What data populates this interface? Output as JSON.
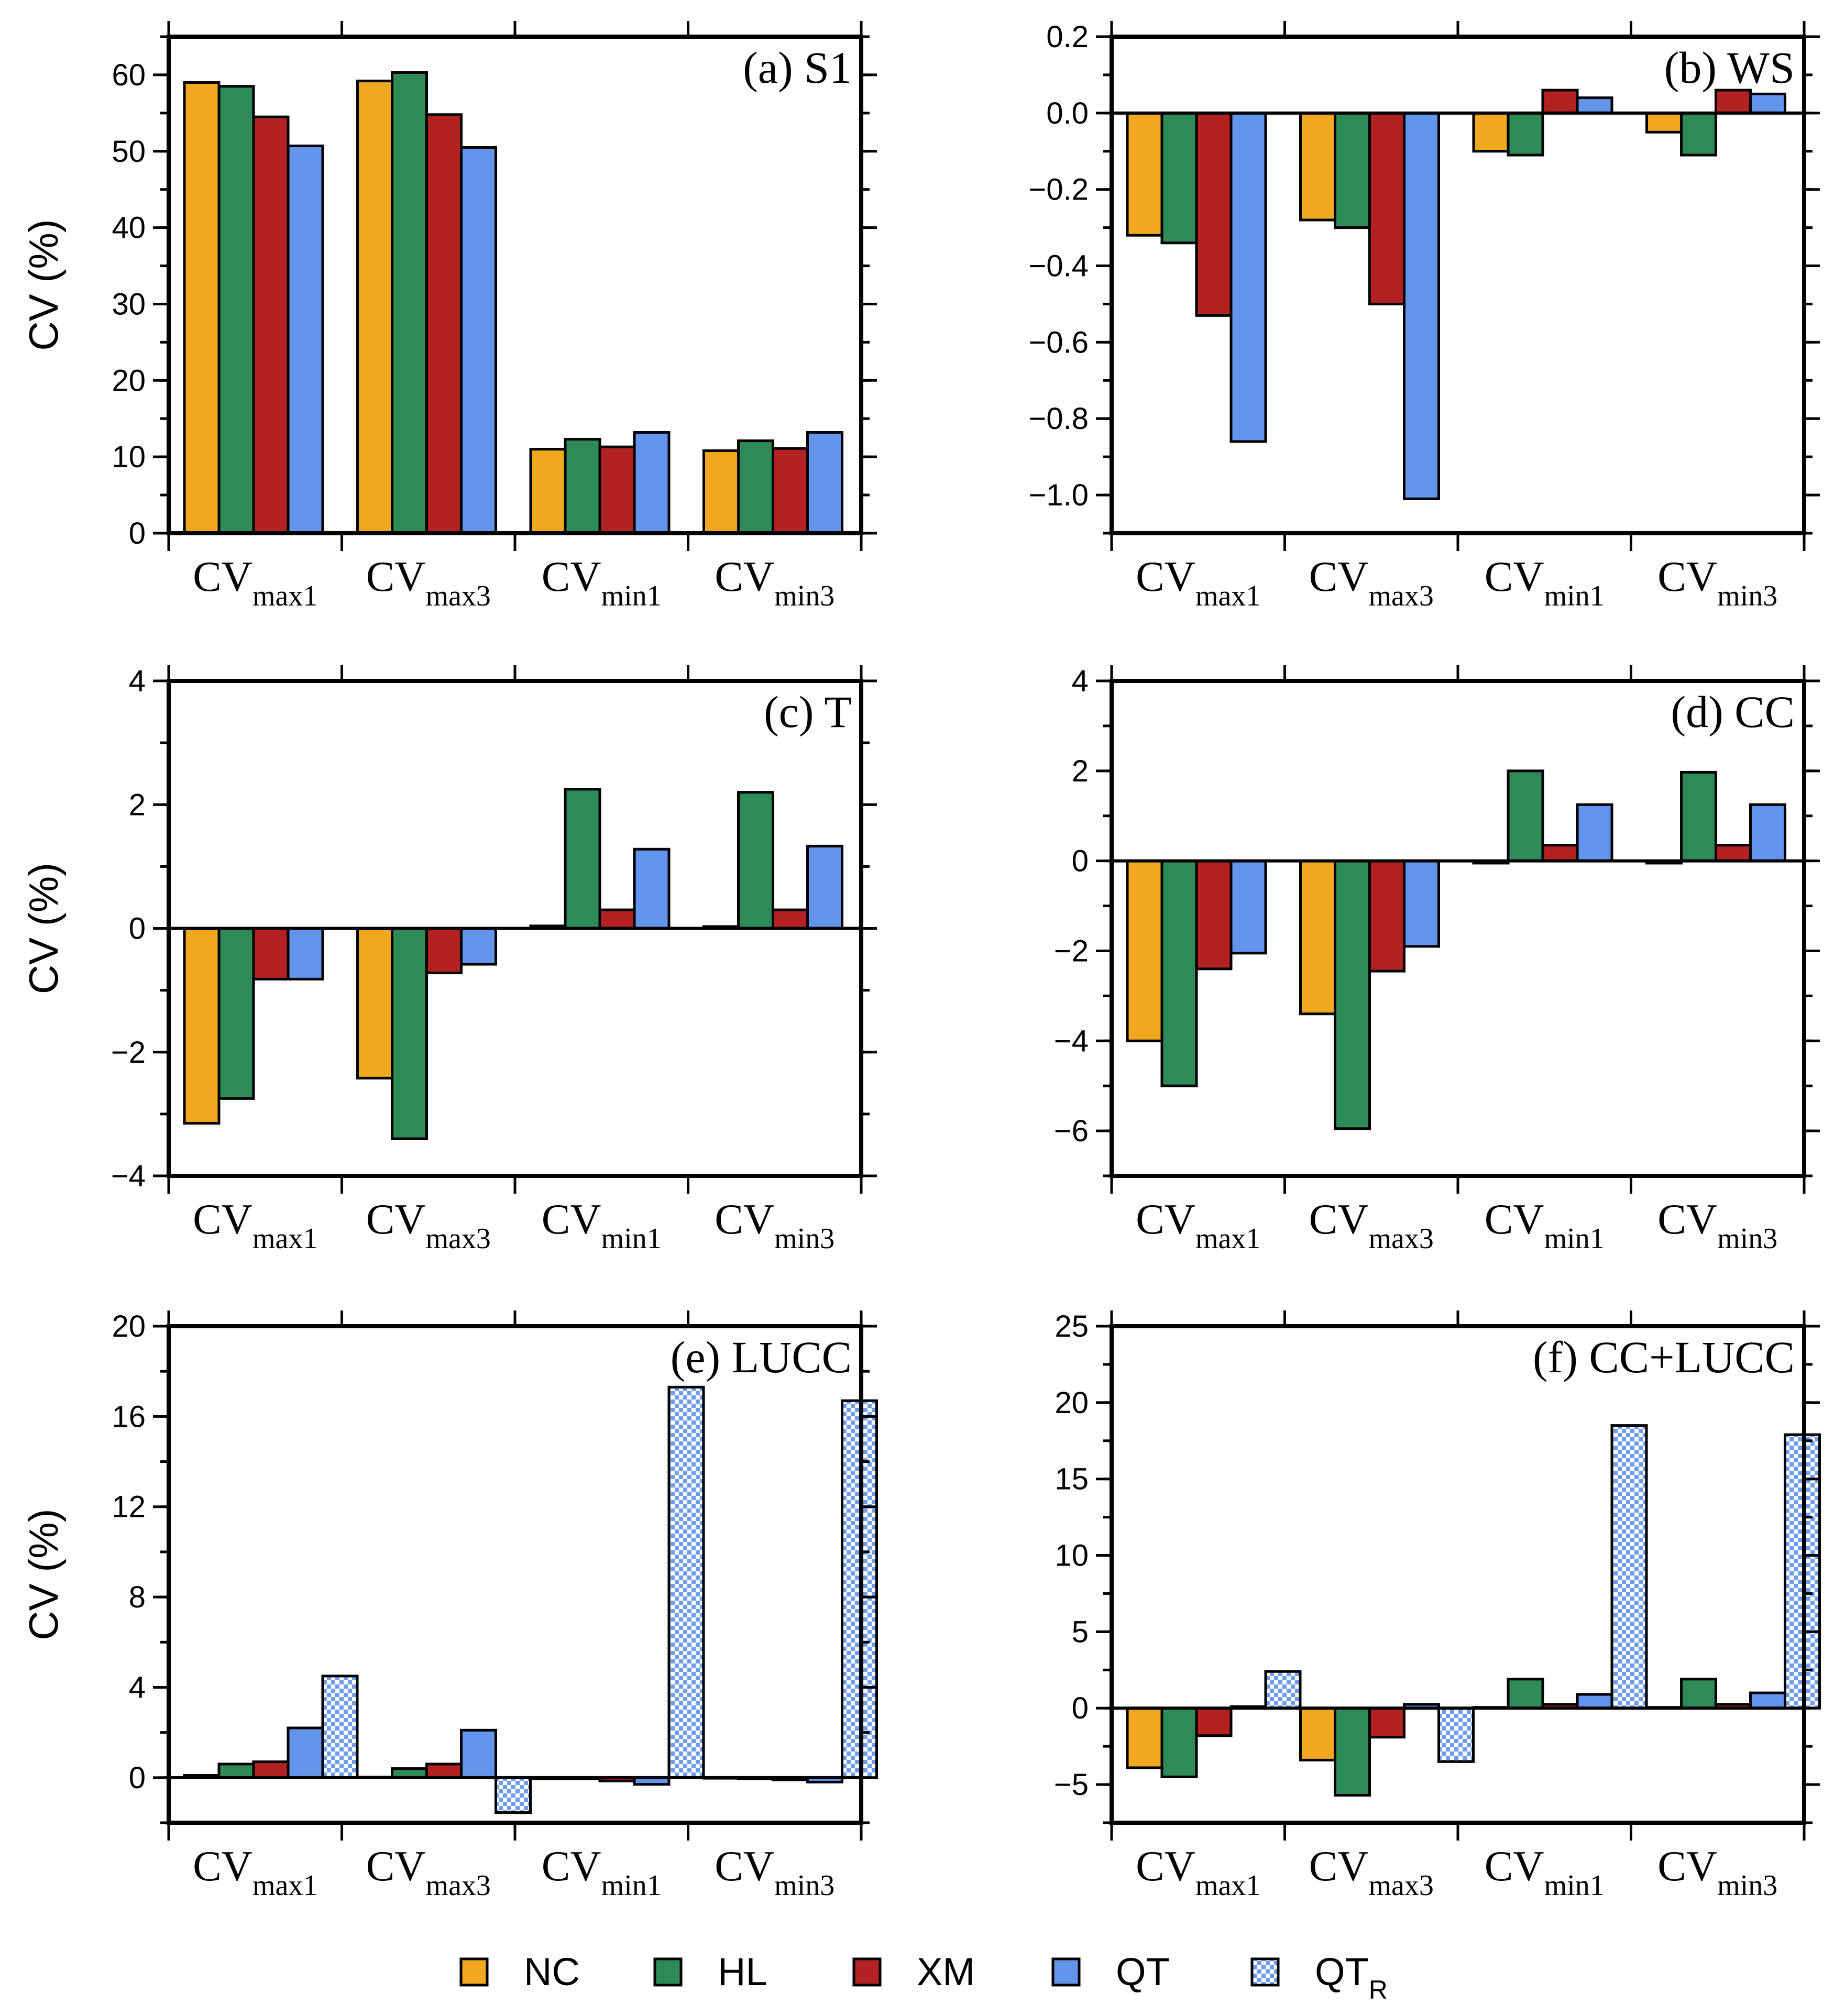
{
  "colors": {
    "NC": "#f0a81e",
    "HL": "#2e8b57",
    "XM": "#b22222",
    "QT": "#6495ed",
    "QT_R_a": "#6d9eeb",
    "QT_R_b": "#ffffff"
  },
  "legend": [
    {
      "key": "NC",
      "label": "NC",
      "sub": ""
    },
    {
      "key": "HL",
      "label": "HL",
      "sub": ""
    },
    {
      "key": "XM",
      "label": "XM",
      "sub": ""
    },
    {
      "key": "QT",
      "label": "QT",
      "sub": ""
    },
    {
      "key": "QT_R",
      "label": "QT",
      "sub": "R"
    }
  ],
  "categories": [
    {
      "main": "CV",
      "sub": "max1"
    },
    {
      "main": "CV",
      "sub": "max3"
    },
    {
      "main": "CV",
      "sub": "min1"
    },
    {
      "main": "CV",
      "sub": "min3"
    }
  ],
  "chart_data": [
    {
      "type": "bar",
      "title": "(a) S1",
      "ylabel": "CV (%)",
      "ylim": [
        0,
        65
      ],
      "yticks": [
        0,
        10,
        20,
        30,
        40,
        50,
        60
      ],
      "ytick_labels": [
        "0",
        "10",
        "20",
        "30",
        "40",
        "50",
        "60"
      ],
      "minor_step": 5,
      "series": [
        {
          "name": "NC",
          "values": [
            59.0,
            59.2,
            11.0,
            10.8
          ]
        },
        {
          "name": "HL",
          "values": [
            58.5,
            60.3,
            12.3,
            12.1
          ]
        },
        {
          "name": "XM",
          "values": [
            54.5,
            54.8,
            11.3,
            11.1
          ]
        },
        {
          "name": "QT",
          "values": [
            50.7,
            50.5,
            13.2,
            13.2
          ]
        }
      ]
    },
    {
      "type": "bar",
      "title": "(b) WS",
      "ylabel": "",
      "ylim": [
        -1.1,
        0.2
      ],
      "yticks": [
        0.2,
        0.0,
        -0.2,
        -0.4,
        -0.6,
        -0.8,
        -1.0
      ],
      "ytick_labels": [
        "0.2",
        "0.0",
        "−0.2",
        "−0.4",
        "−0.6",
        "−0.8",
        "−1.0"
      ],
      "minor_step": 0.1,
      "series": [
        {
          "name": "NC",
          "values": [
            -0.32,
            -0.28,
            -0.1,
            -0.05
          ]
        },
        {
          "name": "HL",
          "values": [
            -0.34,
            -0.3,
            -0.11,
            -0.11
          ]
        },
        {
          "name": "XM",
          "values": [
            -0.53,
            -0.5,
            0.06,
            0.06
          ]
        },
        {
          "name": "QT",
          "values": [
            -0.86,
            -1.01,
            0.04,
            0.05
          ]
        }
      ]
    },
    {
      "type": "bar",
      "title": "(c) T",
      "ylabel": "CV (%)",
      "ylim": [
        -4,
        4
      ],
      "yticks": [
        -4,
        -2,
        0,
        2,
        4
      ],
      "ytick_labels": [
        "−4",
        "−2",
        "0",
        "2",
        "4"
      ],
      "minor_step": 1,
      "series": [
        {
          "name": "NC",
          "values": [
            -3.15,
            -2.42,
            0.04,
            0.03
          ]
        },
        {
          "name": "HL",
          "values": [
            -2.75,
            -3.4,
            2.25,
            2.2
          ]
        },
        {
          "name": "XM",
          "values": [
            -0.82,
            -0.72,
            0.3,
            0.3
          ]
        },
        {
          "name": "QT",
          "values": [
            -0.82,
            -0.58,
            1.28,
            1.33
          ]
        }
      ]
    },
    {
      "type": "bar",
      "title": "(d) CC",
      "ylabel": "",
      "ylim": [
        -7,
        4
      ],
      "yticks": [
        4,
        2,
        0,
        -2,
        -4,
        -6
      ],
      "ytick_labels": [
        "4",
        "2",
        "0",
        "−2",
        "−4",
        "−6"
      ],
      "minor_step": 1,
      "series": [
        {
          "name": "NC",
          "values": [
            -4.0,
            -3.4,
            -0.05,
            -0.05
          ]
        },
        {
          "name": "HL",
          "values": [
            -5.0,
            -5.95,
            2.0,
            1.97
          ]
        },
        {
          "name": "XM",
          "values": [
            -2.4,
            -2.45,
            0.35,
            0.35
          ]
        },
        {
          "name": "QT",
          "values": [
            -2.05,
            -1.9,
            1.25,
            1.25
          ]
        }
      ]
    },
    {
      "type": "bar",
      "title": "(e) LUCC",
      "ylabel": "CV (%)",
      "ylim": [
        -2,
        20
      ],
      "yticks": [
        0,
        4,
        8,
        12,
        16,
        20
      ],
      "ytick_labels": [
        "0",
        "4",
        "8",
        "12",
        "16",
        "20"
      ],
      "minor_step": 2,
      "series": [
        {
          "name": "NC",
          "values": [
            0.1,
            0.02,
            -0.05,
            -0.03
          ]
        },
        {
          "name": "HL",
          "values": [
            0.6,
            0.4,
            -0.05,
            -0.05
          ]
        },
        {
          "name": "XM",
          "values": [
            0.7,
            0.6,
            -0.15,
            -0.1
          ]
        },
        {
          "name": "QT",
          "values": [
            2.2,
            2.1,
            -0.3,
            -0.2
          ]
        },
        {
          "name": "QT_R",
          "values": [
            4.5,
            -1.55,
            17.3,
            16.7
          ]
        }
      ]
    },
    {
      "type": "bar",
      "title": "(f) CC+LUCC",
      "ylabel": "",
      "ylim": [
        -7.5,
        25
      ],
      "yticks": [
        25,
        20,
        15,
        10,
        5,
        0,
        -5
      ],
      "ytick_labels": [
        "25",
        "20",
        "15",
        "10",
        "5",
        "0",
        "−5"
      ],
      "minor_step": 2.5,
      "series": [
        {
          "name": "NC",
          "values": [
            -3.9,
            -3.4,
            0.05,
            0.05
          ]
        },
        {
          "name": "HL",
          "values": [
            -4.5,
            -5.7,
            1.9,
            1.9
          ]
        },
        {
          "name": "XM",
          "values": [
            -1.8,
            -1.9,
            0.25,
            0.25
          ]
        },
        {
          "name": "QT",
          "values": [
            0.1,
            0.25,
            0.9,
            1.0
          ]
        },
        {
          "name": "QT_R",
          "values": [
            2.4,
            -3.5,
            18.5,
            17.9
          ]
        }
      ]
    }
  ]
}
